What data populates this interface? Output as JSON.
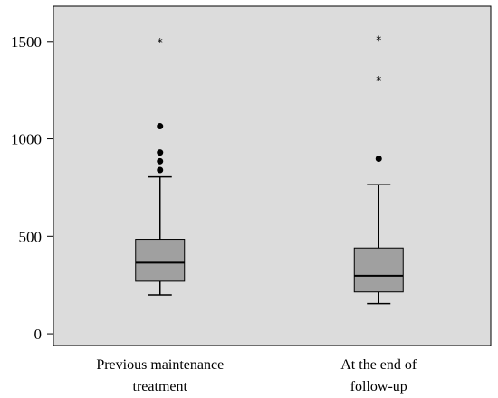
{
  "chart_data": {
    "type": "boxplot",
    "title": "",
    "xlabel": "",
    "ylabel": "",
    "ylim": [
      -60,
      1680
    ],
    "yticks": [
      0,
      500,
      1000,
      1500
    ],
    "grid": false,
    "background": "#dcdcdc",
    "box_color": "#a0a0a0",
    "categories": [
      {
        "label_lines": [
          "Previous maintenance",
          "treatment"
        ],
        "min": 200,
        "q1": 270,
        "median": 365,
        "q3": 485,
        "max": 805,
        "outliers_dot": [
          1065,
          930,
          885,
          840
        ],
        "outliers_star": [
          1500
        ]
      },
      {
        "label_lines": [
          "At the end of",
          "follow-up"
        ],
        "min": 155,
        "q1": 215,
        "median": 298,
        "q3": 440,
        "max": 765,
        "outliers_dot": [
          898
        ],
        "outliers_star": [
          1510,
          1305
        ]
      }
    ]
  }
}
